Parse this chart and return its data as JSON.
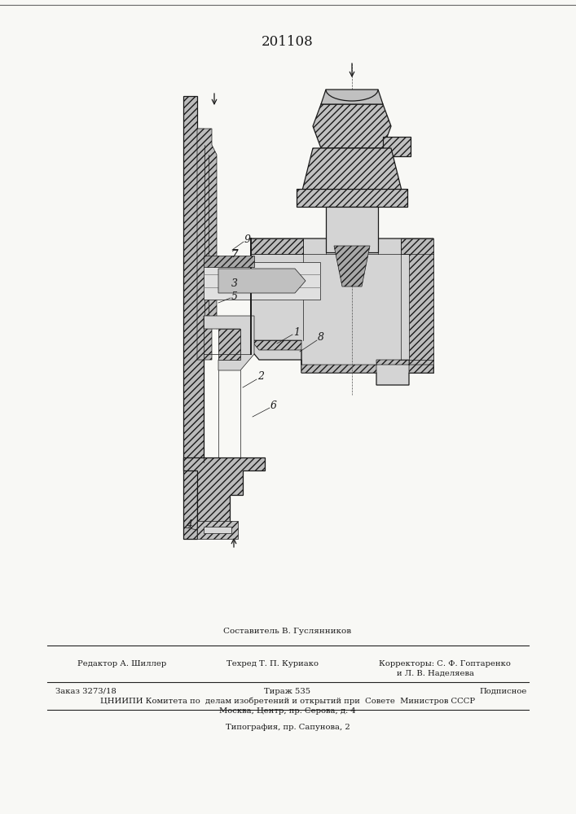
{
  "patent_number": "201108",
  "background_color": "#f8f8f5",
  "drawing_color": "#1a1a1a",
  "footer": {
    "composer": "Составитель В. Гуслянников",
    "editor": "Редактор А. Шиллер",
    "techred": "Техред Т. П. Куриако",
    "correctors_label": "Корректоры: С. Ф. Гоптаренко",
    "corrector2": "и Л. В. Наделяева",
    "order": "Заказ 3273/18",
    "tirage": "Тираж 535",
    "signed": "Подписное",
    "org": "ЦНИИПИ Комитета по  делам изобретений и открытий при  Совете  Министров СССР",
    "address": "Москва, Центр, пр. Серова, д. 4",
    "typography": "Типография, пр. Сапунова, 2"
  }
}
